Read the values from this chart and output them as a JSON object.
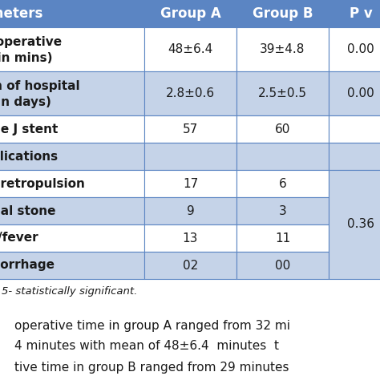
{
  "header_bg": "#5B85C3",
  "header_text_color": "#FFFFFF",
  "row_bg_light": "#C5D3E8",
  "row_bg_white": "#FFFFFF",
  "border_color": "#5B85C3",
  "text_color": "#1a1a1a",
  "header_labels": [
    "ameters",
    "Group A",
    "Group B",
    "P v"
  ],
  "rows": [
    {
      "param_lines": [
        "al operative",
        "e (in mins)"
      ],
      "group_a": "48±6.4",
      "group_b": "39±4.8",
      "p_val": "0.00",
      "bg": "white",
      "section": false
    },
    {
      "param_lines": [
        "gth of hospital",
        "y (in days)"
      ],
      "group_a": "2.8±0.6",
      "group_b": "2.5±0.5",
      "p_val": "0.00",
      "bg": "light",
      "section": false
    },
    {
      "param_lines": [
        "uble J stent"
      ],
      "group_a": "57",
      "group_b": "60",
      "p_val": "",
      "bg": "white",
      "section": false
    },
    {
      "param_lines": [
        "mplications"
      ],
      "group_a": "",
      "group_b": "",
      "p_val": "",
      "bg": "light",
      "section": true
    },
    {
      "param_lines": [
        "ne retropulsion"
      ],
      "group_a": "17",
      "group_b": "6",
      "p_val": "",
      "bg": "white",
      "section": false
    },
    {
      "param_lines": [
        "idual stone"
      ],
      "group_a": "9",
      "group_b": "3",
      "p_val": "",
      "bg": "light",
      "section": false
    },
    {
      "param_lines": [
        "sis/fever"
      ],
      "group_a": "13",
      "group_b": "11",
      "p_val": "",
      "bg": "white",
      "section": false
    },
    {
      "param_lines": [
        "emorrhage"
      ],
      "group_a": "02",
      "group_b": "00",
      "p_val": "",
      "bg": "light",
      "section": false
    }
  ],
  "pval_span_rows": [
    4,
    5,
    6,
    7
  ],
  "pval_span_value": "0.36",
  "footnote": "5- statistically significant.",
  "body_text": [
    "operative time in group A ranged from 32 mi",
    "4 minutes with mean of 48±6.4  minutes  t",
    "tive time in group B ranged from 29 minutes"
  ],
  "figsize": [
    4.74,
    4.74
  ],
  "dpi": 100
}
